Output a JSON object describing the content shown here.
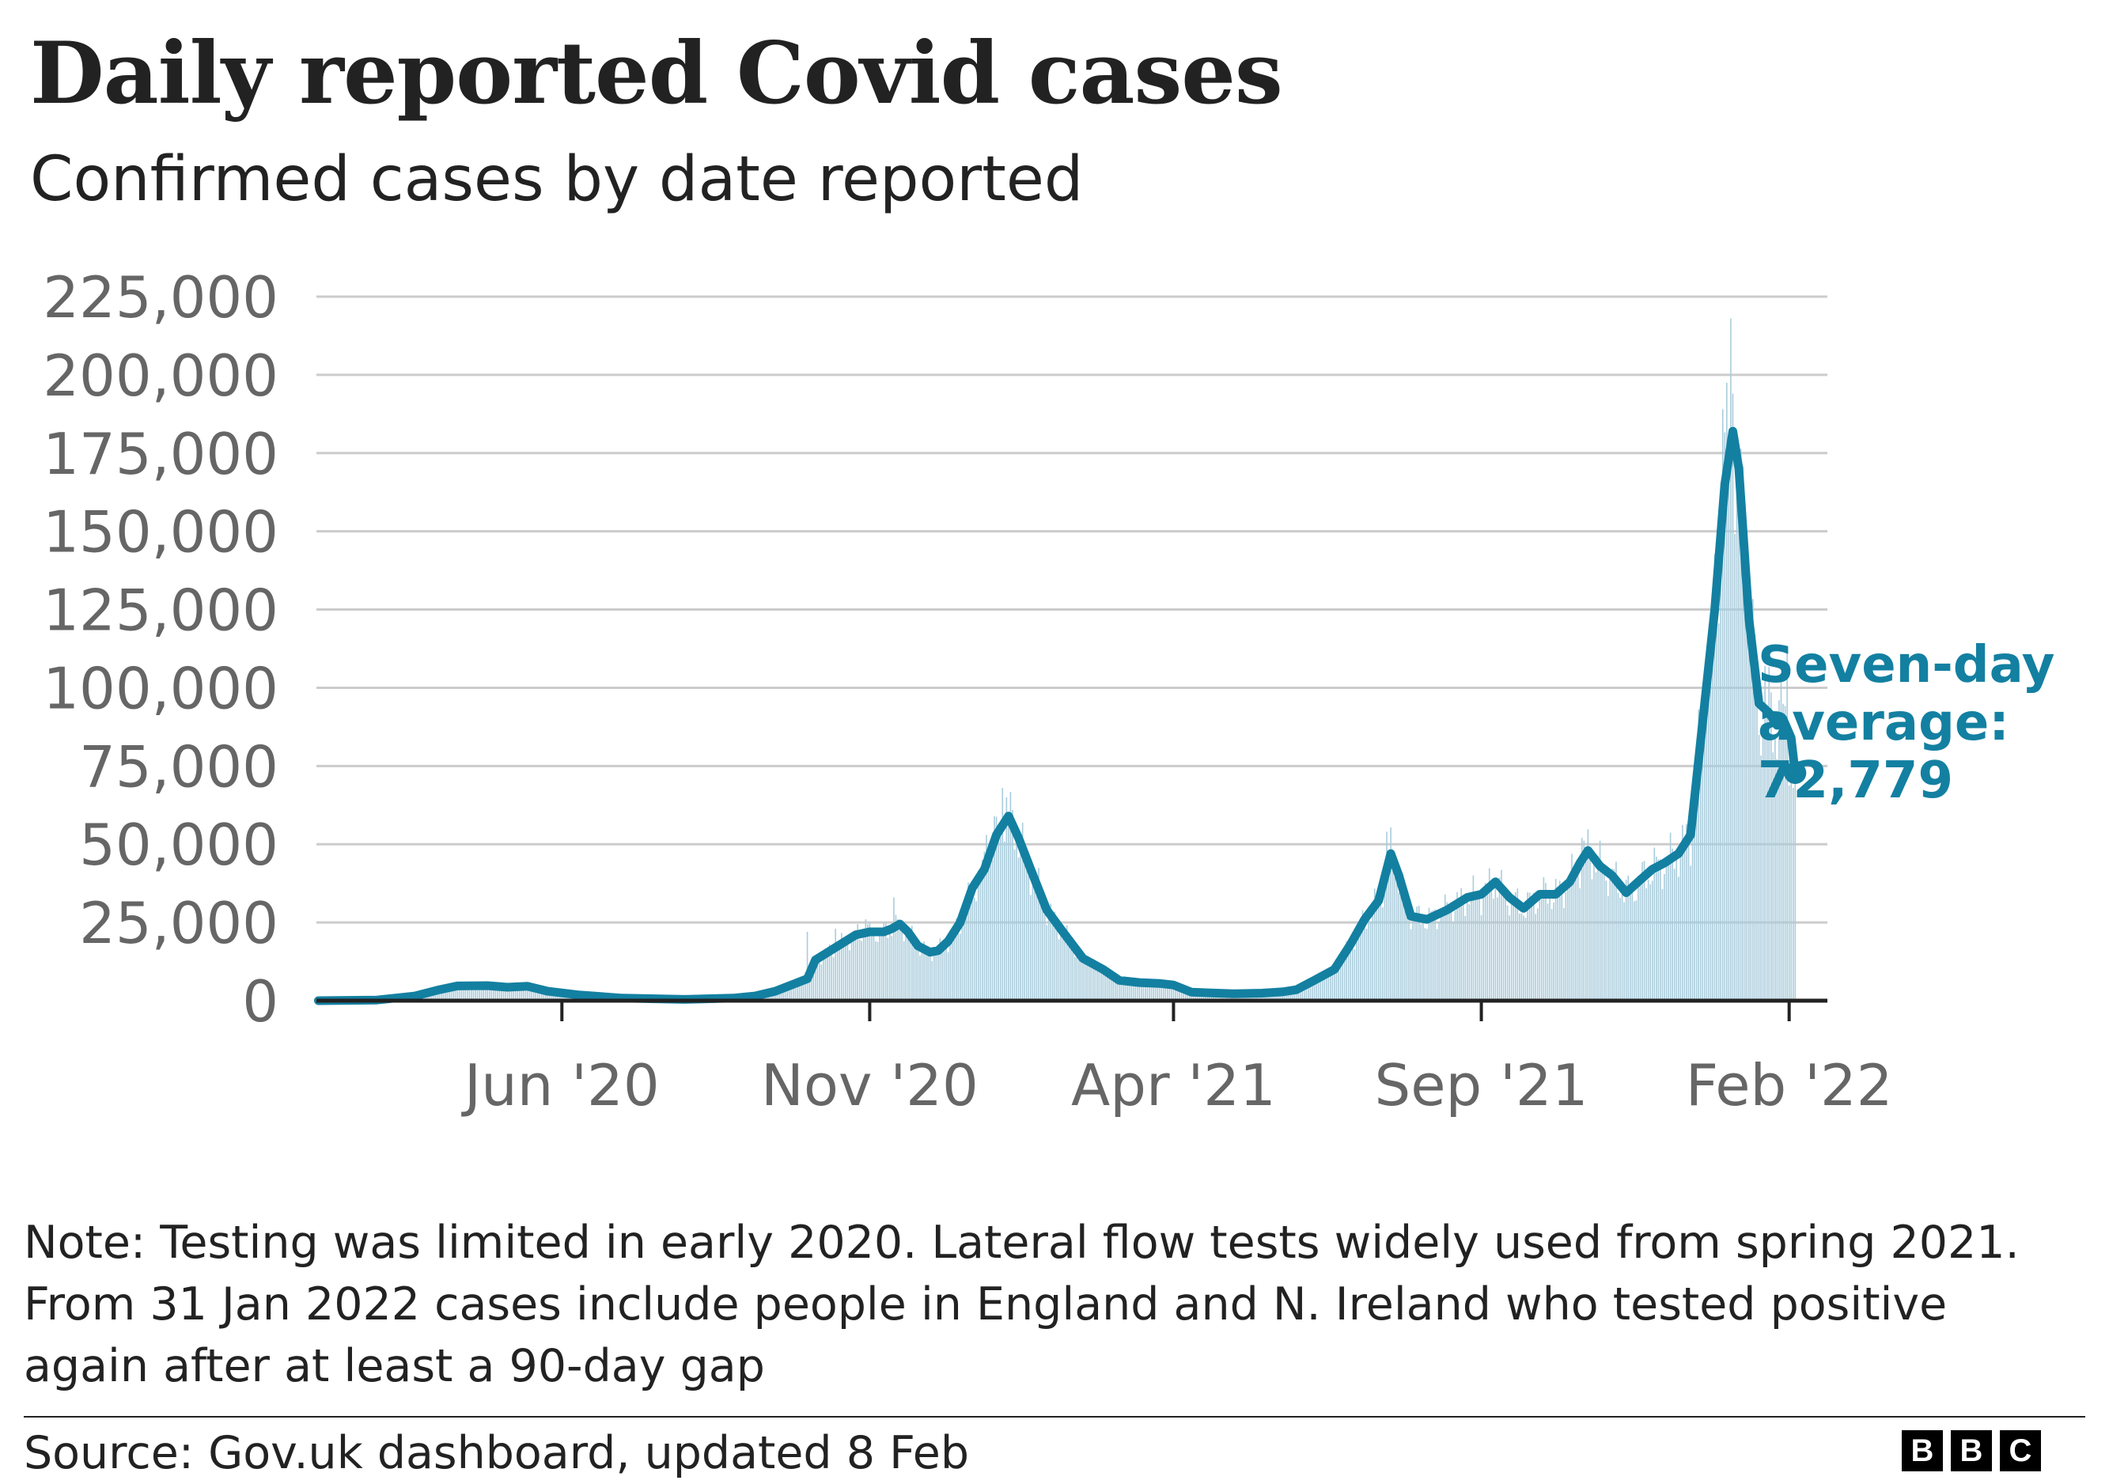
{
  "title": "Daily reported Covid cases",
  "subtitle": "Confirmed cases by date reported",
  "note": "Note: Testing was limited in early 2020. Lateral flow tests widely used from spring 2021. From 31 Jan 2022 cases include people in England and N. Ireland who tested positive again after at least a 90-day gap",
  "source": "Source: Gov.uk dashboard, updated 8 Feb",
  "logo": [
    "B",
    "B",
    "C"
  ],
  "chart_data": {
    "type": "area",
    "x_type": "date",
    "xlim": [
      "2020-01-31",
      "2022-02-20"
    ],
    "ylim": [
      0,
      225000
    ],
    "yticks": [
      0,
      25000,
      50000,
      75000,
      100000,
      125000,
      150000,
      175000,
      200000,
      225000
    ],
    "ytick_labels": [
      "0",
      "25,000",
      "50,000",
      "75,000",
      "100,000",
      "125,000",
      "150,000",
      "175,000",
      "200,000",
      "225,000"
    ],
    "xticks": [
      "2020-06-01",
      "2020-11-01",
      "2021-04-01",
      "2021-09-01",
      "2022-02-01"
    ],
    "xtick_labels": [
      "Jun '20",
      "Nov '20",
      "Apr '21",
      "Sep '21",
      "Feb '22"
    ],
    "grid": true,
    "colors": {
      "line": "#1380a1",
      "bars": "#a9ccdc",
      "grid": "#cccccc",
      "axis": "#222222",
      "tick_text": "#666666"
    },
    "annotation": {
      "lines": [
        "Seven-day",
        "average:",
        "72,779"
      ],
      "color": "#1380a1"
    },
    "series": [
      {
        "kind": "line",
        "points": [
          [
            "2020-02-01",
            0
          ],
          [
            "2020-03-01",
            200
          ],
          [
            "2020-03-20",
            1500
          ],
          [
            "2020-04-01",
            3500
          ],
          [
            "2020-04-10",
            4700
          ],
          [
            "2020-04-25",
            4800
          ],
          [
            "2020-05-05",
            4300
          ],
          [
            "2020-05-15",
            4600
          ],
          [
            "2020-05-25",
            3000
          ],
          [
            "2020-06-10",
            1800
          ],
          [
            "2020-07-01",
            800
          ],
          [
            "2020-08-01",
            400
          ],
          [
            "2020-08-25",
            800
          ],
          [
            "2020-09-05",
            1500
          ],
          [
            "2020-09-15",
            3000
          ],
          [
            "2020-09-25",
            5500
          ],
          [
            "2020-10-01",
            7000
          ],
          [
            "2020-10-05",
            13000
          ],
          [
            "2020-10-10",
            15000
          ],
          [
            "2020-10-20",
            19000
          ],
          [
            "2020-10-25",
            21000
          ],
          [
            "2020-11-01",
            22000
          ],
          [
            "2020-11-08",
            22000
          ],
          [
            "2020-11-12",
            23000
          ],
          [
            "2020-11-16",
            24500
          ],
          [
            "2020-11-20",
            22000
          ],
          [
            "2020-11-25",
            17500
          ],
          [
            "2020-12-01",
            15500
          ],
          [
            "2020-12-05",
            16000
          ],
          [
            "2020-12-10",
            19000
          ],
          [
            "2020-12-16",
            25000
          ],
          [
            "2020-12-22",
            36000
          ],
          [
            "2020-12-28",
            42000
          ],
          [
            "2021-01-03",
            53000
          ],
          [
            "2021-01-09",
            59000
          ],
          [
            "2021-01-14",
            52000
          ],
          [
            "2021-01-20",
            42000
          ],
          [
            "2021-01-28",
            29000
          ],
          [
            "2021-02-05",
            22000
          ],
          [
            "2021-02-15",
            13500
          ],
          [
            "2021-02-25",
            10000
          ],
          [
            "2021-03-05",
            6500
          ],
          [
            "2021-03-15",
            5800
          ],
          [
            "2021-03-25",
            5500
          ],
          [
            "2021-04-01",
            5000
          ],
          [
            "2021-04-10",
            2700
          ],
          [
            "2021-05-01",
            2200
          ],
          [
            "2021-05-15",
            2400
          ],
          [
            "2021-05-25",
            2800
          ],
          [
            "2021-06-01",
            3500
          ],
          [
            "2021-06-10",
            6500
          ],
          [
            "2021-06-20",
            10000
          ],
          [
            "2021-06-28",
            18000
          ],
          [
            "2021-07-05",
            26000
          ],
          [
            "2021-07-12",
            32000
          ],
          [
            "2021-07-18",
            47000
          ],
          [
            "2021-07-22",
            40000
          ],
          [
            "2021-07-28",
            27000
          ],
          [
            "2021-08-05",
            26000
          ],
          [
            "2021-08-15",
            29000
          ],
          [
            "2021-08-25",
            33000
          ],
          [
            "2021-09-01",
            34000
          ],
          [
            "2021-09-08",
            38000
          ],
          [
            "2021-09-15",
            33000
          ],
          [
            "2021-09-22",
            29500
          ],
          [
            "2021-09-30",
            34000
          ],
          [
            "2021-10-08",
            34000
          ],
          [
            "2021-10-15",
            38000
          ],
          [
            "2021-10-20",
            44000
          ],
          [
            "2021-10-24",
            48000
          ],
          [
            "2021-10-30",
            43000
          ],
          [
            "2021-11-05",
            40000
          ],
          [
            "2021-11-12",
            34500
          ],
          [
            "2021-11-18",
            38000
          ],
          [
            "2021-11-25",
            42000
          ],
          [
            "2021-12-01",
            44000
          ],
          [
            "2021-12-08",
            47000
          ],
          [
            "2021-12-14",
            53000
          ],
          [
            "2021-12-20",
            89000
          ],
          [
            "2021-12-26",
            125000
          ],
          [
            "2021-12-31",
            165000
          ],
          [
            "2022-01-04",
            182000
          ],
          [
            "2022-01-07",
            170000
          ],
          [
            "2022-01-12",
            122000
          ],
          [
            "2022-01-17",
            95000
          ],
          [
            "2022-01-22",
            92000
          ],
          [
            "2022-01-26",
            88000
          ],
          [
            "2022-01-29",
            90000
          ],
          [
            "2022-02-02",
            84000
          ],
          [
            "2022-02-04",
            72779
          ]
        ]
      },
      {
        "kind": "bars",
        "points": [
          [
            "2020-10-01",
            22000
          ],
          [
            "2020-10-15",
            23000
          ],
          [
            "2020-10-30",
            26000
          ],
          [
            "2020-11-13",
            33000
          ],
          [
            "2020-12-29",
            53000
          ],
          [
            "2021-01-06",
            68000
          ],
          [
            "2021-01-08",
            65000
          ],
          [
            "2021-07-16",
            54000
          ],
          [
            "2021-10-21",
            52000
          ],
          [
            "2021-12-18",
            93000
          ],
          [
            "2021-12-22",
            106000
          ],
          [
            "2021-12-25",
            122000
          ],
          [
            "2021-12-30",
            189000
          ],
          [
            "2022-01-03",
            218000
          ],
          [
            "2022-01-04",
            194000
          ],
          [
            "2022-01-06",
            179000
          ],
          [
            "2022-01-10",
            141000
          ],
          [
            "2022-01-13",
            110000
          ],
          [
            "2022-01-17",
            85000
          ],
          [
            "2022-01-20",
            107000
          ],
          [
            "2022-01-27",
            96000
          ],
          [
            "2022-01-31",
            112000
          ],
          [
            "2022-02-03",
            68000
          ],
          [
            "2022-02-05",
            57000
          ]
        ]
      }
    ]
  }
}
